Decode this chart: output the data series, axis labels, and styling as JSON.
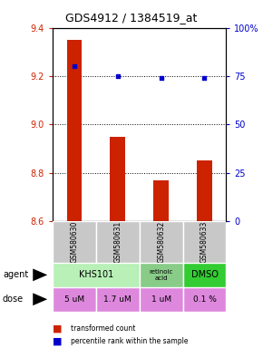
{
  "title": "GDS4912 / 1384519_at",
  "samples": [
    "GSM580630",
    "GSM580631",
    "GSM580632",
    "GSM580633"
  ],
  "bar_values": [
    9.35,
    8.95,
    8.77,
    8.85
  ],
  "percentile_values": [
    80,
    75,
    74,
    74
  ],
  "bar_color": "#cc2200",
  "dot_color": "#0000cc",
  "ylim_left": [
    8.6,
    9.4
  ],
  "ylim_right": [
    0,
    100
  ],
  "yticks_left": [
    8.6,
    8.8,
    9.0,
    9.2,
    9.4
  ],
  "ytick_labels_right": [
    "0",
    "25",
    "50",
    "75",
    "100%"
  ],
  "grid_values": [
    9.2,
    9.0,
    8.8
  ],
  "doses": [
    "5 uM",
    "1.7 uM",
    "1 uM",
    "0.1 %"
  ],
  "dose_color": "#dd88dd",
  "legend_bar_label": "transformed count",
  "legend_dot_label": "percentile rank within the sample",
  "sample_bg_color": "#c8c8c8",
  "agent_light_green": "#b8f0b8",
  "agent_mid_green": "#88cc88",
  "agent_dark_green": "#33cc33",
  "bar_width": 0.35
}
